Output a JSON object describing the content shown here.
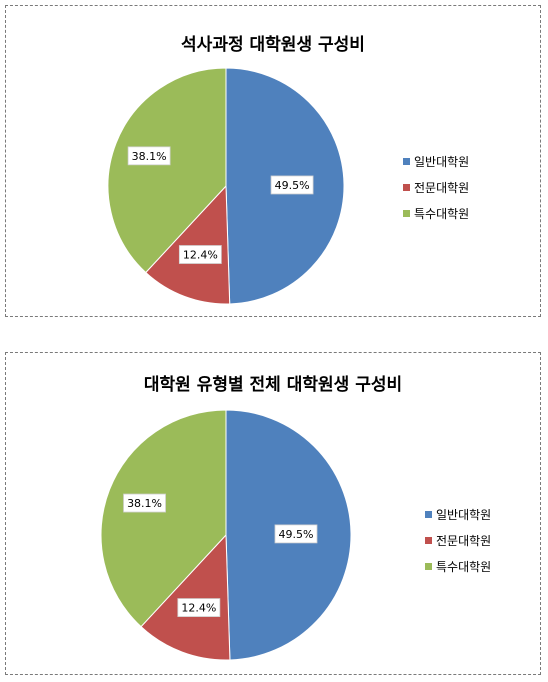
{
  "chart_data": [
    {
      "type": "pie",
      "title": "석사과정 대학원생 구성비",
      "categories": [
        "일반대학원",
        "전문대학원",
        "특수대학원"
      ],
      "values": [
        49.5,
        12.4,
        38.1
      ],
      "labels": [
        "49.5%",
        "12.4%",
        "38.1%"
      ],
      "colors": [
        "#4f81bd",
        "#c0504d",
        "#9bbb59"
      ],
      "legend_position": "right"
    },
    {
      "type": "pie",
      "title": "대학원 유형별 전체 대학원생 구성비",
      "categories": [
        "일반대학원",
        "전문대학원",
        "특수대학원"
      ],
      "values": [
        49.5,
        12.4,
        38.1
      ],
      "labels": [
        "49.5%",
        "12.4%",
        "38.1%"
      ],
      "colors": [
        "#4f81bd",
        "#c0504d",
        "#9bbb59"
      ],
      "legend_position": "right"
    }
  ]
}
